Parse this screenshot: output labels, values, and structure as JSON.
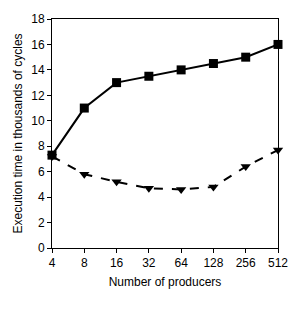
{
  "chart_data": {
    "type": "line",
    "x_label": "Number of producers",
    "y_label": "Execution time in thousands of cycles",
    "categories": [
      "4",
      "8",
      "16",
      "32",
      "64",
      "128",
      "256",
      "512"
    ],
    "series": [
      {
        "color": "#000000",
        "line_style": "solid",
        "marker": "square",
        "values": [
          7.3,
          11,
          13,
          13.5,
          14,
          14.5,
          15,
          16
        ]
      },
      {
        "color": "#000000",
        "line_style": "dash",
        "marker": "triangle-down",
        "values": [
          7.2,
          5.8,
          5.2,
          4.7,
          4.6,
          4.8,
          6.4,
          7.7
        ]
      }
    ],
    "ylim": [
      0,
      18
    ],
    "yticks": [
      0,
      2,
      4,
      6,
      8,
      10,
      12,
      14,
      16,
      18
    ],
    "grid": false
  }
}
